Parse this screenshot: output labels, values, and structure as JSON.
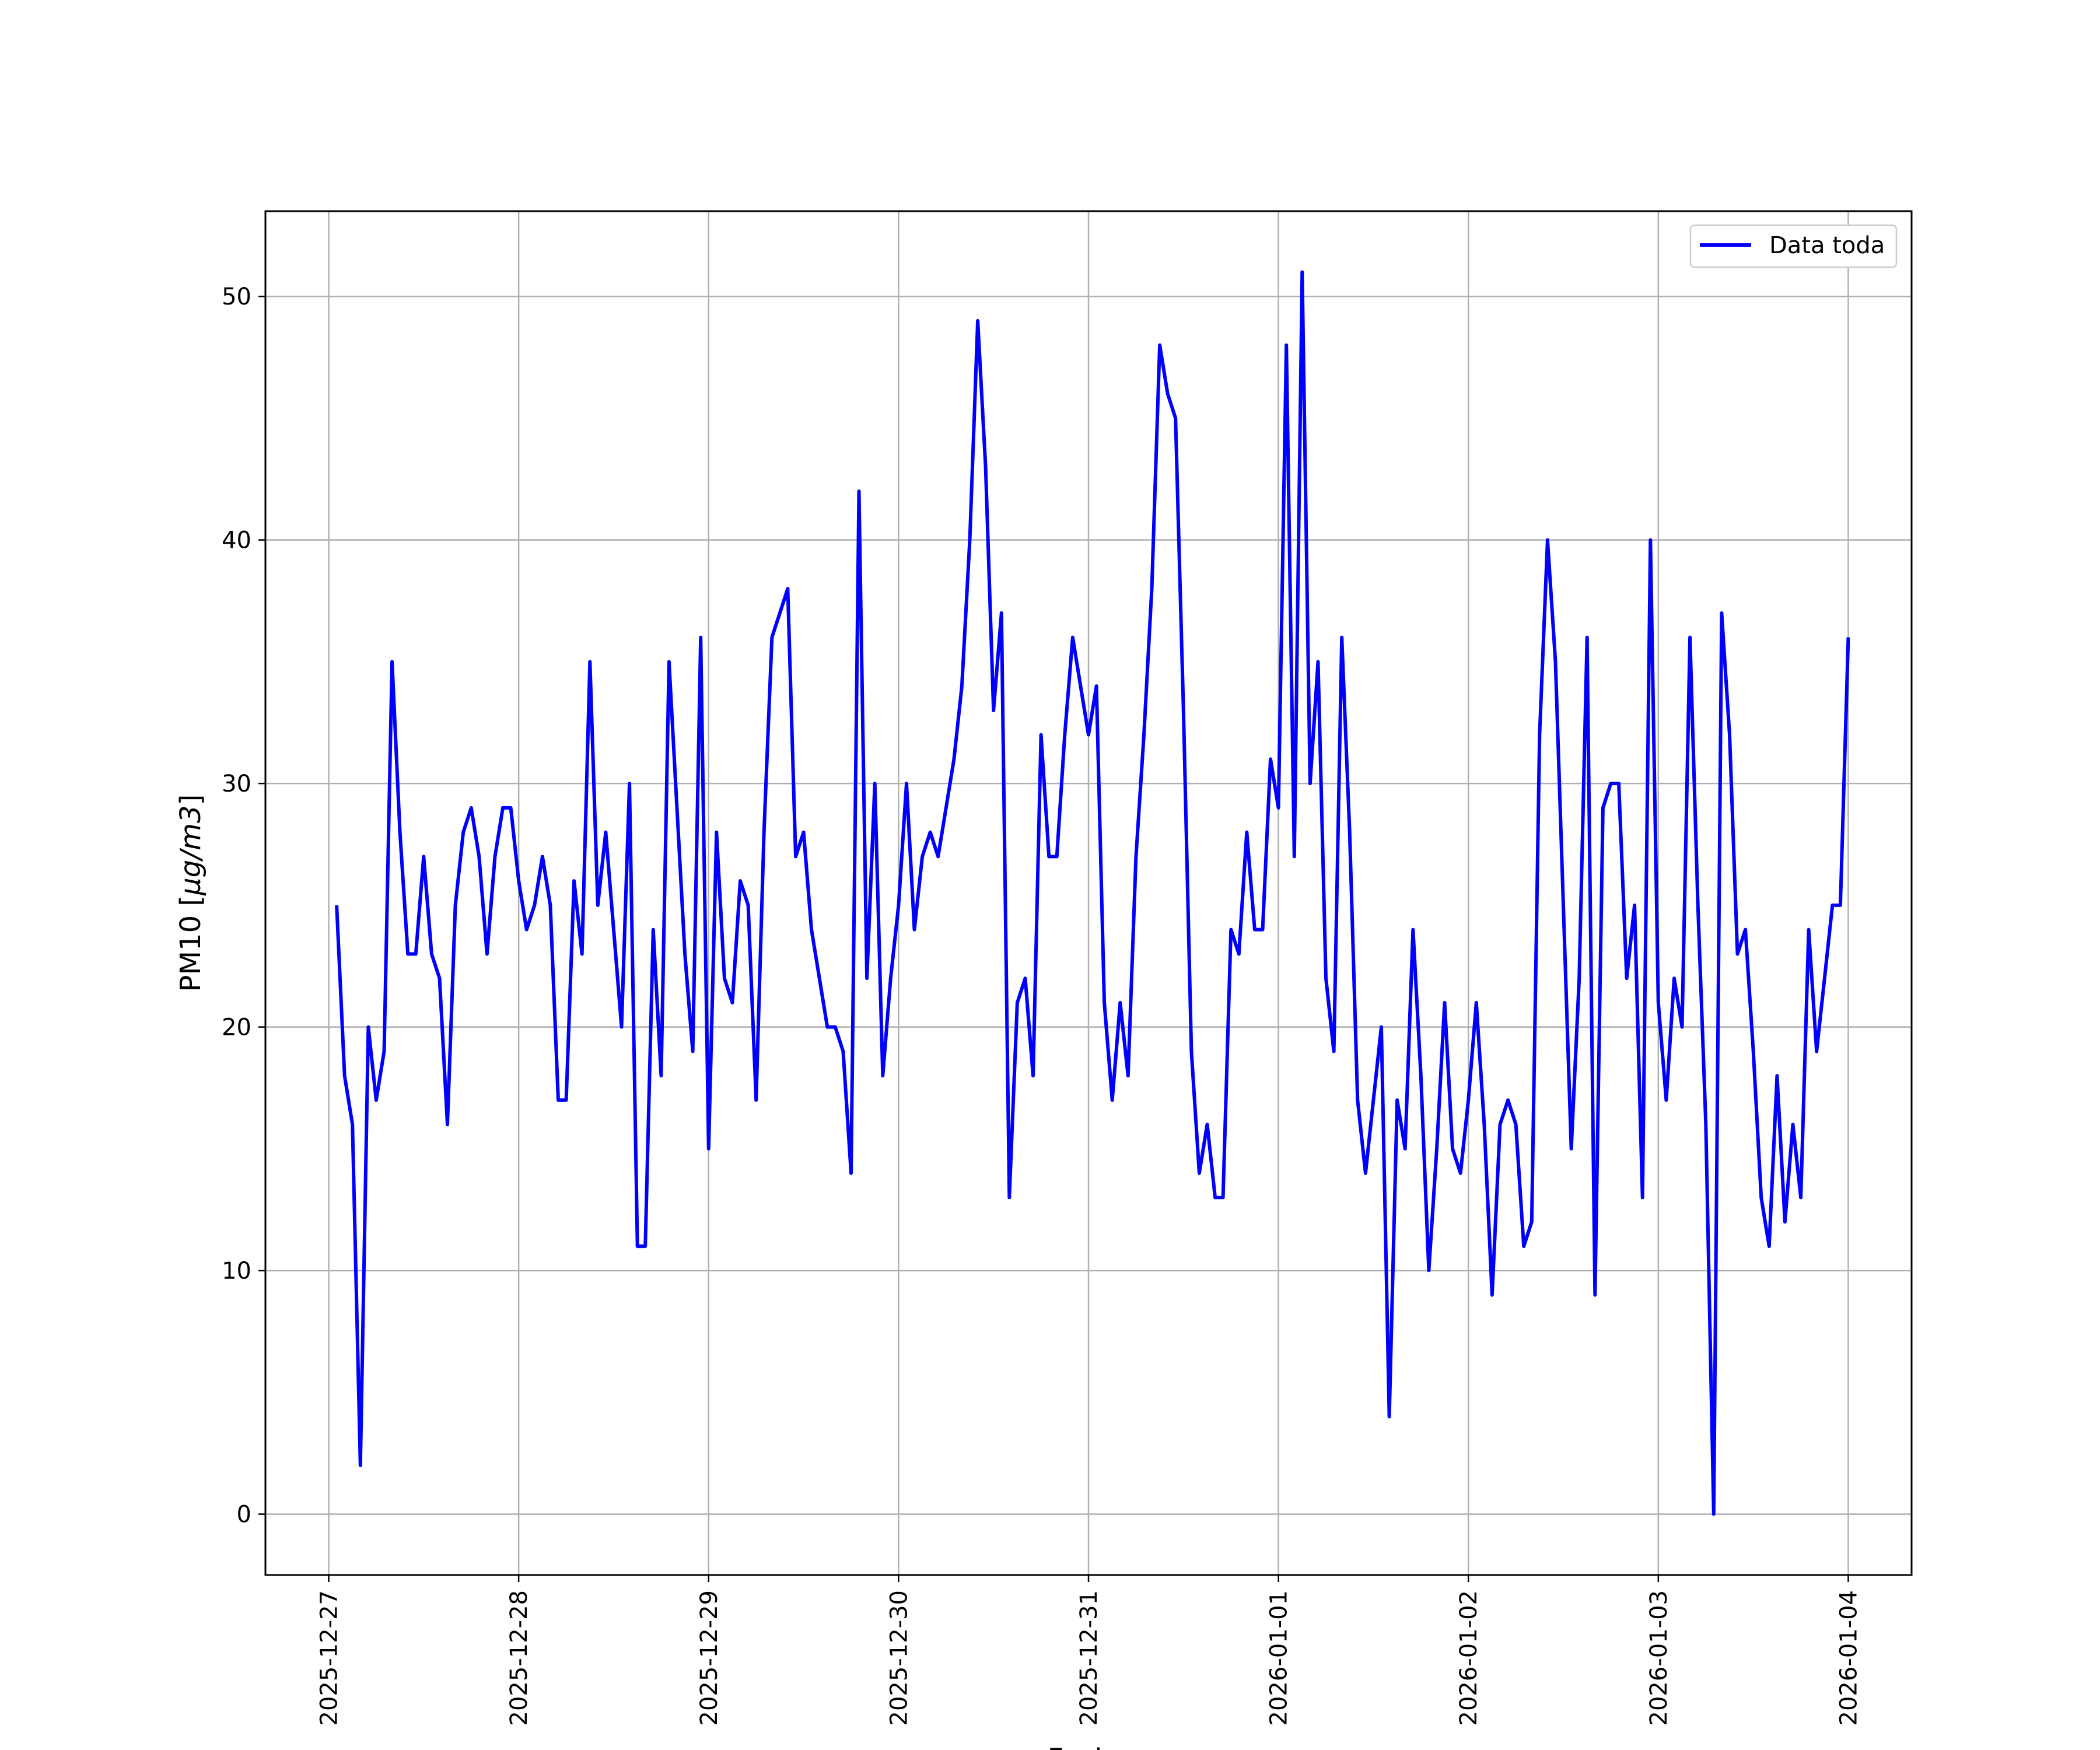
{
  "chart_data": {
    "type": "line",
    "title": "",
    "xlabel": "Fecha",
    "ylabel_main": "PM10 [",
    "ylabel_unit": "μg/m3",
    "ylabel_close": "]",
    "ylim": [
      -2.5,
      53.5
    ],
    "xlim": [
      "2025-12-26T16:00",
      "2026-01-04T08:00"
    ],
    "yticks": [
      0,
      10,
      20,
      30,
      40,
      50
    ],
    "xticks": [
      "2025-12-27",
      "2025-12-28",
      "2025-12-29",
      "2025-12-30",
      "2025-12-31",
      "2026-01-01",
      "2026-01-02",
      "2026-01-03",
      "2026-01-04"
    ],
    "grid": true,
    "legend_position": "upper right",
    "line_color": "#0000ff",
    "series": [
      {
        "name": "Data toda",
        "x_start": "2025-12-27T01:00",
        "x_step_hours": 1,
        "values": [
          25,
          18,
          16,
          2,
          20,
          17,
          19,
          35,
          28,
          23,
          23,
          27,
          23,
          22,
          16,
          25,
          28,
          29,
          27,
          23,
          27,
          29,
          29,
          26,
          24,
          25,
          27,
          25,
          17,
          17,
          26,
          23,
          35,
          25,
          28,
          24,
          20,
          30,
          11,
          11,
          24,
          18,
          35,
          29,
          23,
          19,
          36,
          15,
          28,
          22,
          21,
          26,
          25,
          17,
          28,
          36,
          37,
          38,
          27,
          28,
          24,
          22,
          20,
          20,
          19,
          14,
          42,
          22,
          30,
          18,
          22,
          25,
          30,
          24,
          27,
          28,
          27,
          29,
          31,
          34,
          40,
          49,
          43,
          33,
          37,
          13,
          21,
          22,
          18,
          32,
          27,
          27,
          32,
          36,
          34,
          32,
          34,
          21,
          17,
          21,
          18,
          27,
          32,
          38,
          48,
          46,
          45,
          33,
          19,
          14,
          16,
          13,
          13,
          24,
          23,
          28,
          24,
          24,
          31,
          29,
          48,
          27,
          51,
          30,
          35,
          22,
          19,
          36,
          28,
          17,
          14,
          17,
          20,
          4,
          17,
          15,
          24,
          18,
          10,
          15,
          21,
          15,
          14,
          17,
          21,
          16,
          9,
          16,
          17,
          16,
          11,
          12,
          32,
          40,
          35,
          25,
          15,
          22,
          36,
          9,
          29,
          30,
          30,
          22,
          25,
          13,
          40,
          21,
          17,
          22,
          20,
          36,
          25,
          16,
          0,
          37,
          32,
          23,
          24,
          19,
          13,
          11,
          18,
          12,
          16,
          13,
          24,
          19,
          22,
          25,
          25,
          36
        ]
      }
    ]
  }
}
